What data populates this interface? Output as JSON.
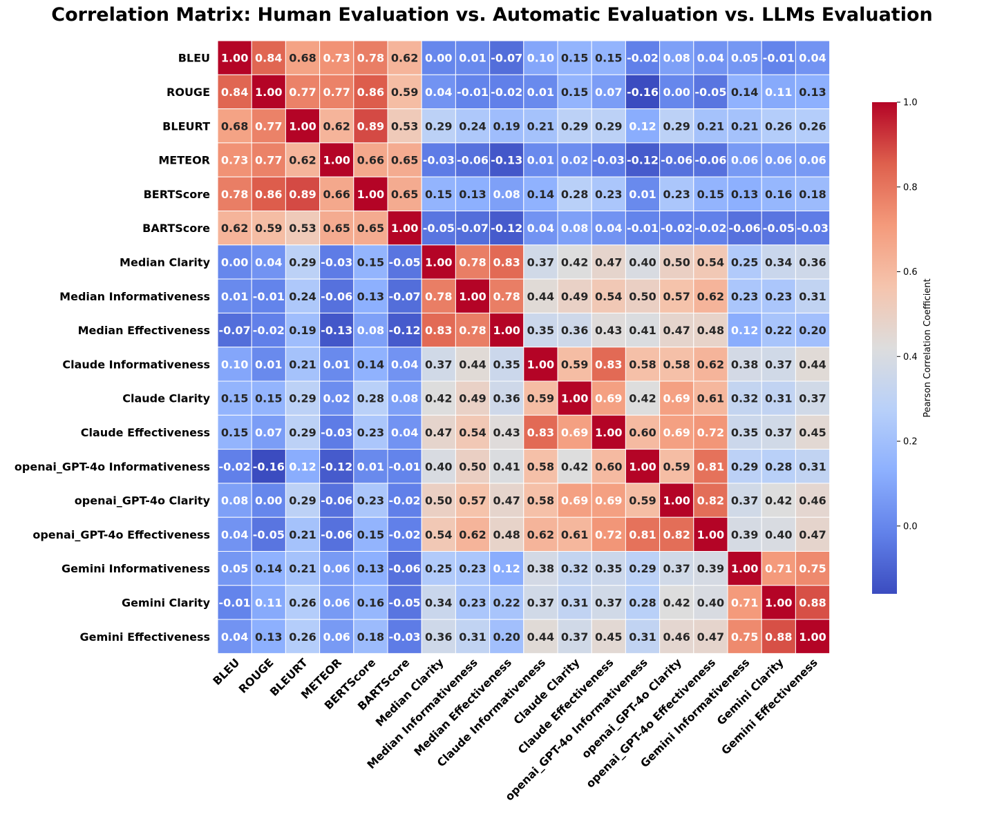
{
  "chart_data": {
    "type": "heatmap",
    "title": "Correlation Matrix: Human Evaluation vs. Automatic Evaluation vs. LLMs Evaluation",
    "labels": [
      "BLEU",
      "ROUGE",
      "BLEURT",
      "METEOR",
      "BERTScore",
      "BARTScore",
      "Median Clarity",
      "Median Informativeness",
      "Median  Effectiveness",
      "Claude Informativeness",
      "Claude Clarity",
      "Claude Effectiveness",
      "openai_GPT-4o Informativeness",
      "openai_GPT-4o Clarity",
      "openai_GPT-4o Effectiveness",
      "Gemini Informativeness",
      "Gemini Clarity",
      "Gemini Effectiveness"
    ],
    "values": [
      [
        1.0,
        0.84,
        0.68,
        0.73,
        0.78,
        0.62,
        0.0,
        0.01,
        -0.07,
        0.1,
        0.15,
        0.15,
        -0.02,
        0.08,
        0.04,
        0.05,
        -0.01,
        0.04
      ],
      [
        0.84,
        1.0,
        0.77,
        0.77,
        0.86,
        0.59,
        0.04,
        -0.01,
        -0.02,
        0.01,
        0.15,
        0.07,
        -0.16,
        0.0,
        -0.05,
        0.14,
        0.11,
        0.13
      ],
      [
        0.68,
        0.77,
        1.0,
        0.62,
        0.89,
        0.53,
        0.29,
        0.24,
        0.19,
        0.21,
        0.29,
        0.29,
        0.12,
        0.29,
        0.21,
        0.21,
        0.26,
        0.26
      ],
      [
        0.73,
        0.77,
        0.62,
        1.0,
        0.66,
        0.65,
        -0.03,
        -0.06,
        -0.13,
        0.01,
        0.02,
        -0.03,
        -0.12,
        -0.06,
        -0.06,
        0.06,
        0.06,
        0.06
      ],
      [
        0.78,
        0.86,
        0.89,
        0.66,
        1.0,
        0.65,
        0.15,
        0.13,
        0.08,
        0.14,
        0.28,
        0.23,
        0.01,
        0.23,
        0.15,
        0.13,
        0.16,
        0.18
      ],
      [
        0.62,
        0.59,
        0.53,
        0.65,
        0.65,
        1.0,
        -0.05,
        -0.07,
        -0.12,
        0.04,
        0.08,
        0.04,
        -0.01,
        -0.02,
        -0.02,
        -0.06,
        -0.05,
        -0.03
      ],
      [
        0.0,
        0.04,
        0.29,
        -0.03,
        0.15,
        -0.05,
        1.0,
        0.78,
        0.83,
        0.37,
        0.42,
        0.47,
        0.4,
        0.5,
        0.54,
        0.25,
        0.34,
        0.36
      ],
      [
        0.01,
        -0.01,
        0.24,
        -0.06,
        0.13,
        -0.07,
        0.78,
        1.0,
        0.78,
        0.44,
        0.49,
        0.54,
        0.5,
        0.57,
        0.62,
        0.23,
        0.23,
        0.31
      ],
      [
        -0.07,
        -0.02,
        0.19,
        -0.13,
        0.08,
        -0.12,
        0.83,
        0.78,
        1.0,
        0.35,
        0.36,
        0.43,
        0.41,
        0.47,
        0.48,
        0.12,
        0.22,
        0.2
      ],
      [
        0.1,
        0.01,
        0.21,
        0.01,
        0.14,
        0.04,
        0.37,
        0.44,
        0.35,
        1.0,
        0.59,
        0.83,
        0.58,
        0.58,
        0.62,
        0.38,
        0.37,
        0.44
      ],
      [
        0.15,
        0.15,
        0.29,
        0.02,
        0.28,
        0.08,
        0.42,
        0.49,
        0.36,
        0.59,
        1.0,
        0.69,
        0.42,
        0.69,
        0.61,
        0.32,
        0.31,
        0.37
      ],
      [
        0.15,
        0.07,
        0.29,
        -0.03,
        0.23,
        0.04,
        0.47,
        0.54,
        0.43,
        0.83,
        0.69,
        1.0,
        0.6,
        0.69,
        0.72,
        0.35,
        0.37,
        0.45
      ],
      [
        -0.02,
        -0.16,
        0.12,
        -0.12,
        0.01,
        -0.01,
        0.4,
        0.5,
        0.41,
        0.58,
        0.42,
        0.6,
        1.0,
        0.59,
        0.81,
        0.29,
        0.28,
        0.31
      ],
      [
        0.08,
        0.0,
        0.29,
        -0.06,
        0.23,
        -0.02,
        0.5,
        0.57,
        0.47,
        0.58,
        0.69,
        0.69,
        0.59,
        1.0,
        0.82,
        0.37,
        0.42,
        0.46
      ],
      [
        0.04,
        -0.05,
        0.21,
        -0.06,
        0.15,
        -0.02,
        0.54,
        0.62,
        0.48,
        0.62,
        0.61,
        0.72,
        0.81,
        0.82,
        1.0,
        0.39,
        0.4,
        0.47
      ],
      [
        0.05,
        0.14,
        0.21,
        0.06,
        0.13,
        -0.06,
        0.25,
        0.23,
        0.12,
        0.38,
        0.32,
        0.35,
        0.29,
        0.37,
        0.39,
        1.0,
        0.71,
        0.75
      ],
      [
        -0.01,
        0.11,
        0.26,
        0.06,
        0.16,
        -0.05,
        0.34,
        0.23,
        0.22,
        0.37,
        0.31,
        0.37,
        0.28,
        0.42,
        0.4,
        0.71,
        1.0,
        0.88
      ],
      [
        0.04,
        0.13,
        0.26,
        0.06,
        0.18,
        -0.03,
        0.36,
        0.31,
        0.2,
        0.44,
        0.37,
        0.45,
        0.31,
        0.46,
        0.47,
        0.75,
        0.88,
        1.0
      ]
    ],
    "colormap": "coolwarm",
    "vmin": -0.16,
    "vmax": 1.0,
    "colorbar": {
      "label": "Pearson Correlation Coefficient",
      "ticks": [
        0.0,
        0.2,
        0.4,
        0.6,
        0.8,
        1.0
      ],
      "tick_labels": [
        "0.0",
        "0.2",
        "0.4",
        "0.6",
        "0.8",
        "1.0"
      ]
    },
    "legend_placement": "right"
  }
}
